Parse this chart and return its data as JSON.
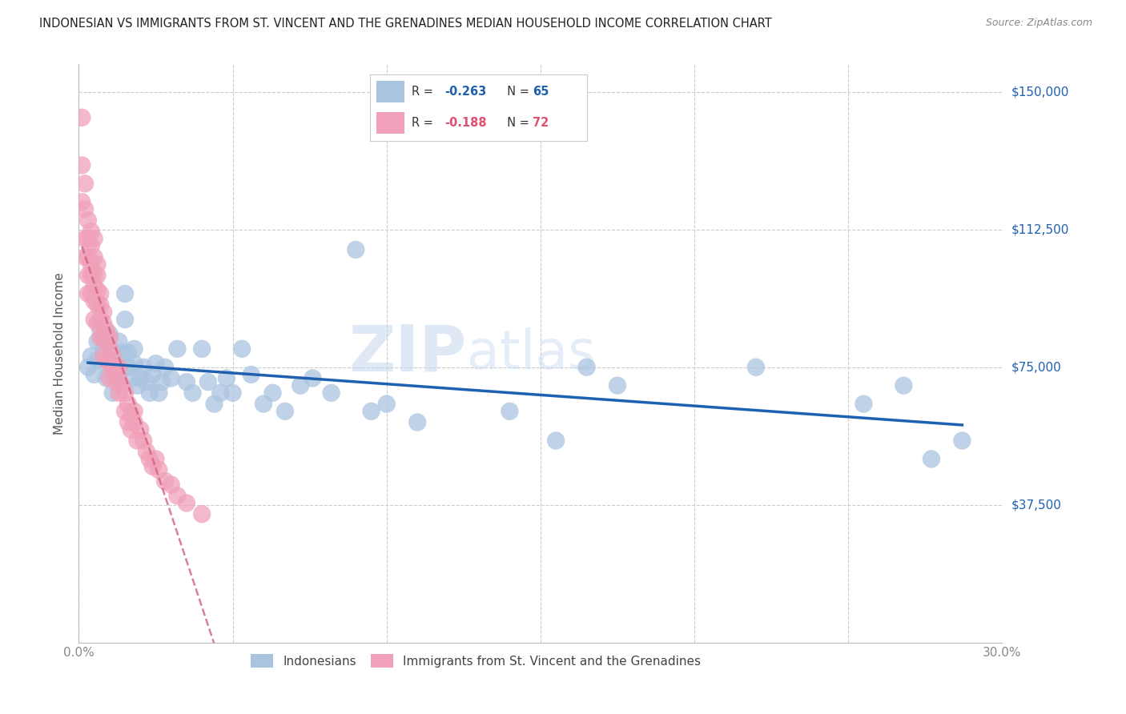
{
  "title": "INDONESIAN VS IMMIGRANTS FROM ST. VINCENT AND THE GRENADINES MEDIAN HOUSEHOLD INCOME CORRELATION CHART",
  "source": "Source: ZipAtlas.com",
  "ylabel": "Median Household Income",
  "xlim": [
    0.0,
    0.3
  ],
  "ylim": [
    0,
    157500
  ],
  "ytick_vals": [
    0,
    37500,
    75000,
    112500,
    150000
  ],
  "ytick_right_labels": [
    "",
    "$37,500",
    "$75,000",
    "$112,500",
    "$150,000"
  ],
  "xtick_positions": [
    0.0,
    0.05,
    0.1,
    0.15,
    0.2,
    0.25,
    0.3
  ],
  "xtick_labels": [
    "0.0%",
    "",
    "",
    "",
    "",
    "",
    "30.0%"
  ],
  "blue_R": -0.263,
  "blue_N": 65,
  "pink_R": -0.188,
  "pink_N": 72,
  "blue_color": "#aac4e0",
  "pink_color": "#f0a0b8",
  "blue_line_color": "#2060b0",
  "pink_line_color": "#d06080",
  "legend_label_blue": "Indonesians",
  "legend_label_pink": "Immigrants from St. Vincent and the Grenadines",
  "blue_x": [
    0.003,
    0.004,
    0.005,
    0.006,
    0.006,
    0.007,
    0.008,
    0.009,
    0.009,
    0.01,
    0.01,
    0.011,
    0.011,
    0.012,
    0.013,
    0.013,
    0.014,
    0.015,
    0.015,
    0.016,
    0.016,
    0.017,
    0.018,
    0.018,
    0.019,
    0.02,
    0.021,
    0.022,
    0.023,
    0.024,
    0.025,
    0.026,
    0.027,
    0.028,
    0.03,
    0.032,
    0.035,
    0.037,
    0.04,
    0.042,
    0.044,
    0.046,
    0.048,
    0.05,
    0.053,
    0.056,
    0.06,
    0.063,
    0.067,
    0.072,
    0.076,
    0.082,
    0.09,
    0.095,
    0.1,
    0.11,
    0.14,
    0.155,
    0.165,
    0.175,
    0.22,
    0.255,
    0.268,
    0.277,
    0.287
  ],
  "blue_y": [
    75000,
    78000,
    73000,
    77000,
    82000,
    85000,
    80000,
    76000,
    72000,
    79000,
    84000,
    73000,
    68000,
    76000,
    82000,
    71000,
    79000,
    95000,
    88000,
    75000,
    79000,
    72000,
    80000,
    76000,
    70000,
    72000,
    75000,
    71000,
    68000,
    73000,
    76000,
    68000,
    71000,
    75000,
    72000,
    80000,
    71000,
    68000,
    80000,
    71000,
    65000,
    68000,
    72000,
    68000,
    80000,
    73000,
    65000,
    68000,
    63000,
    70000,
    72000,
    68000,
    107000,
    63000,
    65000,
    60000,
    63000,
    55000,
    75000,
    70000,
    75000,
    65000,
    70000,
    50000,
    55000
  ],
  "pink_x": [
    0.001,
    0.001,
    0.001,
    0.002,
    0.002,
    0.002,
    0.002,
    0.003,
    0.003,
    0.003,
    0.003,
    0.003,
    0.004,
    0.004,
    0.004,
    0.004,
    0.004,
    0.005,
    0.005,
    0.005,
    0.005,
    0.005,
    0.005,
    0.006,
    0.006,
    0.006,
    0.006,
    0.006,
    0.007,
    0.007,
    0.007,
    0.007,
    0.008,
    0.008,
    0.008,
    0.008,
    0.009,
    0.009,
    0.009,
    0.01,
    0.01,
    0.01,
    0.01,
    0.011,
    0.011,
    0.012,
    0.012,
    0.013,
    0.013,
    0.014,
    0.015,
    0.015,
    0.016,
    0.016,
    0.017,
    0.017,
    0.018,
    0.019,
    0.02,
    0.021,
    0.022,
    0.023,
    0.024,
    0.025,
    0.026,
    0.028,
    0.03,
    0.032,
    0.035,
    0.04,
    0.013,
    0.018
  ],
  "pink_y": [
    143000,
    130000,
    120000,
    125000,
    118000,
    110000,
    105000,
    115000,
    110000,
    105000,
    100000,
    95000,
    112000,
    108000,
    103000,
    100000,
    95000,
    110000,
    105000,
    100000,
    97000,
    93000,
    88000,
    103000,
    100000,
    96000,
    92000,
    87000,
    95000,
    92000,
    88000,
    83000,
    90000,
    87000,
    83000,
    78000,
    85000,
    82000,
    77000,
    83000,
    80000,
    76000,
    72000,
    78000,
    74000,
    75000,
    71000,
    72000,
    68000,
    70000,
    68000,
    63000,
    65000,
    60000,
    62000,
    58000,
    60000,
    55000,
    58000,
    55000,
    52000,
    50000,
    48000,
    50000,
    47000,
    44000,
    43000,
    40000,
    38000,
    35000,
    75000,
    63000
  ]
}
